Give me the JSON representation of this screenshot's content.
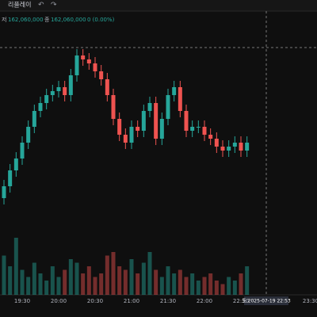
{
  "toolbar": {
    "replay": "리플레이"
  },
  "header": {
    "low_label": "저",
    "low": "162,060,000",
    "close_label": "종",
    "close": "162,060,000",
    "change": "0 (0.00%)"
  },
  "cursor_label": "토 2025-07-19   22:53",
  "x_extra_labels": [
    "23:30"
  ],
  "chart_data": {
    "type": "candlestick",
    "categories": [
      null,
      null,
      null,
      null,
      "19:30",
      null,
      null,
      null,
      null,
      null,
      "20:00",
      null,
      null,
      null,
      null,
      null,
      "20:30",
      null,
      null,
      null,
      null,
      null,
      "21:00",
      null,
      null,
      null,
      null,
      null,
      "21:30",
      null,
      null,
      null,
      null,
      null,
      "22:00",
      null,
      null,
      null,
      null,
      null,
      "22:30",
      null
    ],
    "open": [
      161635000,
      161710000,
      161785000,
      161885000,
      161960000,
      162060000,
      162160000,
      162260000,
      162310000,
      162360000,
      162385000,
      162410000,
      162360000,
      162485000,
      162610000,
      162585000,
      162560000,
      162510000,
      162460000,
      162360000,
      162210000,
      162110000,
      162060000,
      162160000,
      162135000,
      162260000,
      162310000,
      162085000,
      162210000,
      162360000,
      162410000,
      162260000,
      162135000,
      162160000,
      162160000,
      162110000,
      162085000,
      162035000,
      162010000,
      162035000,
      162060000,
      162010000
    ],
    "high": [
      161750000,
      161825000,
      161925000,
      162000000,
      162100000,
      162200000,
      162300000,
      162350000,
      162400000,
      162425000,
      162450000,
      162450000,
      162525000,
      162650000,
      162650000,
      162625000,
      162600000,
      162550000,
      162500000,
      162400000,
      162250000,
      162150000,
      162200000,
      162200000,
      162300000,
      162350000,
      162350000,
      162250000,
      162400000,
      162450000,
      162450000,
      162300000,
      162200000,
      162200000,
      162200000,
      162150000,
      162125000,
      162075000,
      162075000,
      162100000,
      162100000,
      162100000
    ],
    "low": [
      161595000,
      161670000,
      161745000,
      161845000,
      161920000,
      162020000,
      162120000,
      162220000,
      162270000,
      162320000,
      162345000,
      162320000,
      162320000,
      162445000,
      162545000,
      162520000,
      162470000,
      162420000,
      162320000,
      162170000,
      162070000,
      162020000,
      162020000,
      162095000,
      162095000,
      162220000,
      162045000,
      162045000,
      162170000,
      162320000,
      162220000,
      162095000,
      162095000,
      162120000,
      162070000,
      162045000,
      161995000,
      161970000,
      161970000,
      161995000,
      161970000,
      161970000
    ],
    "close": [
      161710000,
      161785000,
      161885000,
      161960000,
      162060000,
      162160000,
      162260000,
      162310000,
      162360000,
      162385000,
      162410000,
      162360000,
      162485000,
      162610000,
      162585000,
      162560000,
      162510000,
      162460000,
      162360000,
      162210000,
      162110000,
      162060000,
      162160000,
      162135000,
      162260000,
      162310000,
      162085000,
      162210000,
      162360000,
      162410000,
      162260000,
      162135000,
      162160000,
      162160000,
      162110000,
      162085000,
      162035000,
      162010000,
      162035000,
      162060000,
      162010000,
      162060000
    ],
    "volume": [
      30,
      55,
      40,
      80,
      35,
      25,
      45,
      30,
      20,
      40,
      25,
      35,
      50,
      45,
      30,
      40,
      25,
      30,
      55,
      60,
      40,
      35,
      50,
      30,
      45,
      60,
      35,
      25,
      40,
      30,
      35,
      25,
      30,
      20,
      25,
      30,
      20,
      15,
      25,
      20,
      30,
      40
    ],
    "ylim": [
      161110000,
      162860000
    ],
    "vlim": [
      0,
      100
    ],
    "up_color": "#26a69a",
    "down_color": "#ef5350"
  }
}
